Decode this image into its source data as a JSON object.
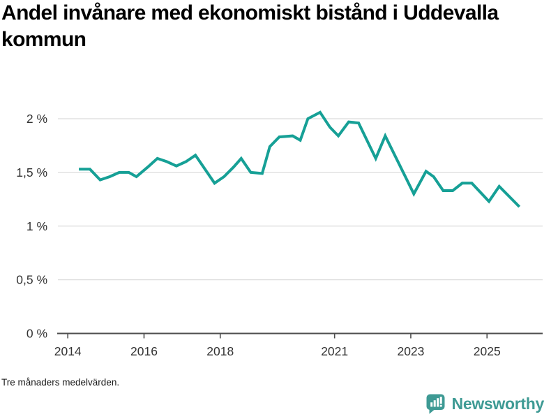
{
  "title": "Andel invånare med ekonomiskt bistånd i Uddevalla kommun",
  "footnote": "Tre månaders medelvärden.",
  "branding": {
    "name": "Newsworthy"
  },
  "colors": {
    "line": "#16a096",
    "grid": "#dcdcdc",
    "axis": "#4d4d4d",
    "tick_text": "#333333",
    "brand": "#3e9a94",
    "title_text": "#000000"
  },
  "chart_data": {
    "type": "line",
    "title": "Andel invånare med ekonomiskt bistånd i Uddevalla kommun",
    "subtitle": "Tre månaders medelvärden.",
    "unit": "%",
    "series_name": "Andel invånare med ekonomiskt bistånd",
    "line_color": "#16a096",
    "grid": true,
    "legend": "none",
    "xlim": [
      2013.74,
      2026.46
    ],
    "ylim": [
      0,
      2.2
    ],
    "x_ticks": [
      2014,
      2016,
      2018,
      2021,
      2023,
      2025
    ],
    "x_tick_labels": [
      "2014",
      "2016",
      "2018",
      "2021",
      "2023",
      "2025"
    ],
    "y_ticks": [
      0,
      0.5,
      1,
      1.5,
      2
    ],
    "y_tick_labels": [
      "0 %",
      "0,5 %",
      "1 %",
      "1,5 %",
      "2 %"
    ],
    "x": [
      2014.29,
      2014.58,
      2014.85,
      2015.1,
      2015.35,
      2015.6,
      2015.8,
      2016.1,
      2016.35,
      2016.6,
      2016.85,
      2017.1,
      2017.35,
      2017.85,
      2018.1,
      2018.35,
      2018.55,
      2018.8,
      2019.1,
      2019.3,
      2019.55,
      2019.9,
      2020.1,
      2020.3,
      2020.62,
      2020.88,
      2021.1,
      2021.37,
      2021.63,
      2022.08,
      2022.33,
      2023.08,
      2023.4,
      2023.6,
      2023.85,
      2024.1,
      2024.35,
      2024.6,
      2025.05,
      2025.32,
      2025.85
    ],
    "y": [
      1.53,
      1.53,
      1.43,
      1.46,
      1.5,
      1.5,
      1.46,
      1.55,
      1.63,
      1.6,
      1.56,
      1.6,
      1.66,
      1.4,
      1.46,
      1.55,
      1.63,
      1.5,
      1.49,
      1.74,
      1.83,
      1.84,
      1.8,
      2.0,
      2.06,
      1.92,
      1.84,
      1.97,
      1.96,
      1.63,
      1.84,
      1.3,
      1.51,
      1.46,
      1.33,
      1.33,
      1.4,
      1.4,
      1.23,
      1.37,
      1.18
    ]
  }
}
